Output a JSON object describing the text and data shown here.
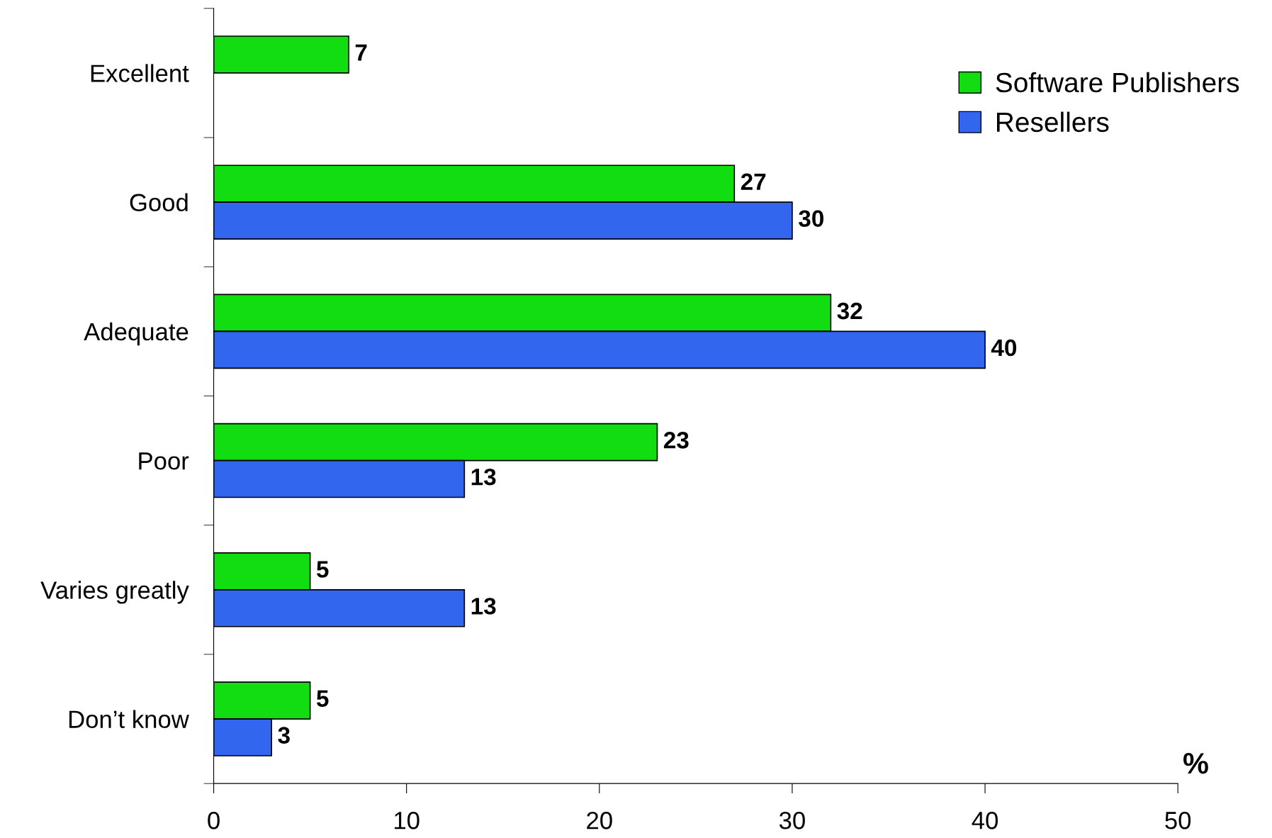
{
  "chart_data": {
    "type": "bar",
    "orientation": "horizontal",
    "categories": [
      "Excellent",
      "Good",
      "Adequate",
      "Poor",
      "Varies greatly",
      "Don’t know"
    ],
    "series": [
      {
        "name": "Software Publishers",
        "color": "#11dd11",
        "values": [
          7,
          27,
          32,
          23,
          5,
          5
        ]
      },
      {
        "name": "Resellers",
        "color": "#3366ee",
        "values": [
          null,
          30,
          40,
          13,
          13,
          3
        ]
      }
    ],
    "xlabel": "%",
    "xlim": [
      0,
      50
    ],
    "xticks": [
      0,
      10,
      20,
      30,
      40,
      50
    ],
    "data_labels": true,
    "legend": "top right",
    "grid": false
  }
}
